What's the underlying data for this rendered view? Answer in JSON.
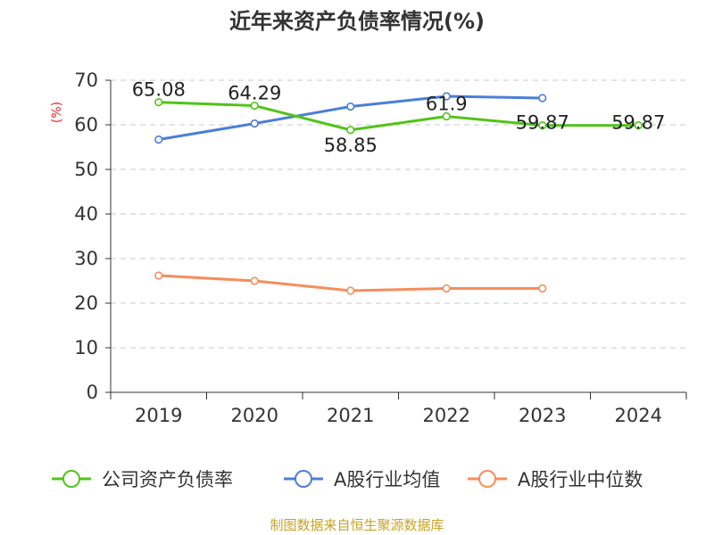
{
  "chart_data": {
    "type": "line",
    "title": "近年来资产负债率情况(%)",
    "ylabel": "(%)",
    "xlabel": "",
    "categories": [
      "2019",
      "2020",
      "2021",
      "2022",
      "2023",
      "2024"
    ],
    "ylim": [
      0,
      70
    ],
    "yticks": [
      0,
      10,
      20,
      30,
      40,
      50,
      60,
      70
    ],
    "grid": true,
    "legend_position": "bottom",
    "series": [
      {
        "name": "公司资产负债率",
        "color": "#52c41a",
        "values": [
          65.08,
          64.29,
          58.85,
          61.9,
          59.87,
          59.87
        ],
        "labels": [
          "65.08",
          "64.29",
          "58.85",
          "61.9",
          "59.87",
          "59.87"
        ]
      },
      {
        "name": "A股行业均值",
        "color": "#4a7fd8",
        "values": [
          56.7,
          60.3,
          64.1,
          66.4,
          66.0,
          null
        ]
      },
      {
        "name": "A股行业中位数",
        "color": "#f58d5c",
        "values": [
          26.2,
          25.0,
          22.8,
          23.3,
          23.3,
          null
        ]
      }
    ]
  },
  "source_text": "制图数据来自恒生聚源数据库"
}
